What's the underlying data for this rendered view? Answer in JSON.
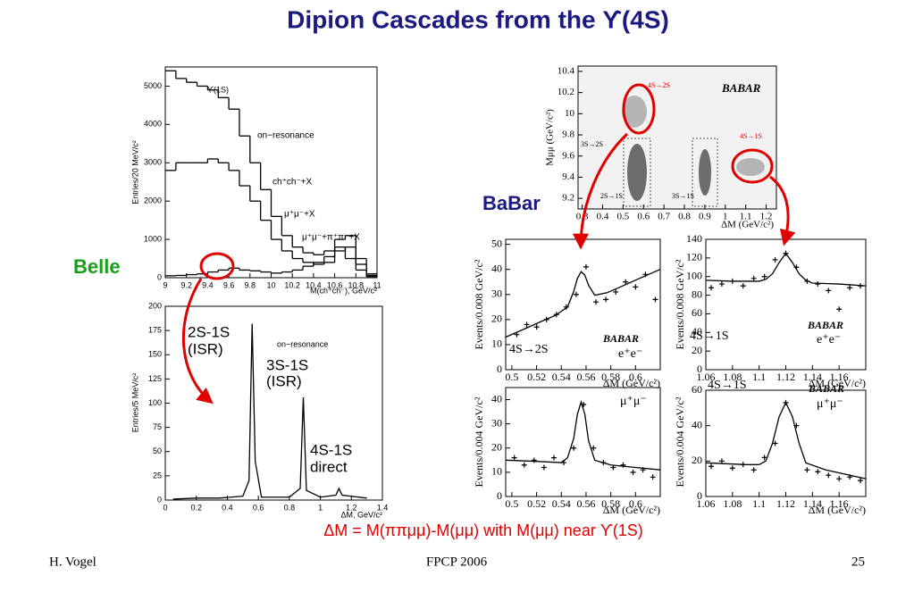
{
  "title": "Dipion Cascades from the ϒ(4S)",
  "labels": {
    "belle": "Belle",
    "babar": "BaBar",
    "formula": "ΔM = M(ππμμ)-M(μμ)  with  M(μμ) near ϒ(1S)"
  },
  "footer": {
    "author": "H. Vogel",
    "conference": "FPCP 2006",
    "page": "25"
  },
  "plots": [
    {
      "xlim": [
        9,
        11
      ],
      "ylim": [
        0,
        5500
      ],
      "xticks": [
        9,
        9.2,
        9.4,
        9.6,
        9.8,
        10,
        10.2,
        10.4,
        10.6,
        10.8,
        11
      ],
      "yticks": [
        0,
        1000,
        2000,
        3000,
        4000,
        5000
      ],
      "xlabel": "M(ch⁺ch⁻), GeV/c²",
      "ylabel": "Entries/20 MeV/c²",
      "annotations": [
        "ϒ(1S)",
        "on−resonance",
        "ch⁺ch⁻+X",
        "μ⁺μ⁻+X",
        "μ⁺μ⁻+π⁺π⁻+X"
      ],
      "series": [
        {
          "style": "step",
          "x": [
            9.0,
            9.1,
            9.2,
            9.3,
            9.4,
            9.5,
            9.6,
            9.7,
            9.8,
            9.9,
            10.0,
            10.1,
            10.2,
            10.3,
            10.4,
            10.5,
            10.6,
            10.7,
            10.8,
            10.9
          ],
          "values": [
            5400,
            5200,
            5100,
            5000,
            4900,
            4700,
            4400,
            3700,
            3000,
            2300,
            1600,
            1100,
            800,
            650,
            600,
            700,
            1000,
            1100,
            500,
            100
          ]
        },
        {
          "style": "step",
          "x": [
            9.0,
            9.1,
            9.2,
            9.3,
            9.4,
            9.5,
            9.6,
            9.7,
            9.8,
            9.9,
            10.0,
            10.1,
            10.2,
            10.3,
            10.4,
            10.5,
            10.6,
            10.7,
            10.8,
            10.9
          ],
          "values": [
            2800,
            3000,
            3000,
            3000,
            3100,
            3000,
            2800,
            2400,
            2000,
            1500,
            1000,
            700,
            500,
            400,
            350,
            400,
            700,
            800,
            350,
            60
          ]
        },
        {
          "style": "step",
          "x": [
            9.0,
            9.1,
            9.2,
            9.3,
            9.4,
            9.5,
            9.6,
            9.7,
            9.8,
            9.9,
            10.0,
            10.1,
            10.2,
            10.3,
            10.4,
            10.5,
            10.6,
            10.7,
            10.8,
            10.9
          ],
          "values": [
            50,
            60,
            80,
            100,
            150,
            200,
            250,
            200,
            180,
            150,
            120,
            150,
            200,
            300,
            400,
            550,
            800,
            500,
            200,
            30
          ]
        }
      ]
    },
    {
      "xlim": [
        0,
        1.4
      ],
      "ylim": [
        0,
        200
      ],
      "xticks": [
        0,
        0.2,
        0.4,
        0.6,
        0.8,
        1,
        1.2,
        1.4
      ],
      "yticks": [
        0,
        25,
        50,
        75,
        100,
        125,
        150,
        175,
        200
      ],
      "xlabel": "ΔM, GeV/c²",
      "ylabel": "Entries/5 MeV/c²",
      "annotations": [
        "on−resonance",
        "2S-1S",
        "(ISR)",
        "3S-1S",
        "(ISR)",
        "4S-1S",
        "direct"
      ],
      "series": [
        {
          "style": "line",
          "x": [
            0.05,
            0.2,
            0.35,
            0.5,
            0.54,
            0.56,
            0.58,
            0.62,
            0.8,
            0.87,
            0.89,
            0.91,
            1.0,
            1.1,
            1.12,
            1.14,
            1.3
          ],
          "values": [
            1,
            2,
            2,
            4,
            20,
            182,
            40,
            3,
            3,
            12,
            106,
            10,
            3,
            5,
            12,
            5,
            2
          ]
        }
      ]
    },
    {
      "xlim": [
        0.28,
        1.25
      ],
      "ylim": [
        9.1,
        10.45
      ],
      "xticks": [
        0.3,
        0.4,
        0.5,
        0.6,
        0.7,
        0.8,
        0.9,
        1,
        1.1,
        1.2
      ],
      "yticks": [
        9.2,
        9.4,
        9.6,
        9.8,
        10,
        10.2,
        10.4
      ],
      "xlabel": "ΔM   (GeV/c²)",
      "ylabel": "Mμμ  (GeV/c²)",
      "annotations": [
        "4S→2S",
        "3S→2S",
        "2S→1S",
        "3S→1S",
        "4S→1S",
        "BABAR"
      ],
      "series": []
    },
    {
      "xlim": [
        0.495,
        0.62
      ],
      "ylim": [
        0,
        52
      ],
      "xticks": [
        0.5,
        0.52,
        0.54,
        0.56,
        0.58,
        0.6
      ],
      "yticks": [
        0,
        10,
        20,
        30,
        40,
        50
      ],
      "xlabel": "ΔM (GeV/c²)",
      "ylabel": "Events/0.008 GeV/c²",
      "annotations": [
        "4S→2S",
        "BABAR",
        "e⁺e⁻"
      ],
      "series": [
        {
          "style": "points",
          "x": [
            0.504,
            0.512,
            0.52,
            0.528,
            0.536,
            0.544,
            0.552,
            0.56,
            0.568,
            0.576,
            0.584,
            0.592,
            0.6,
            0.608,
            0.616
          ],
          "values": [
            14,
            18,
            17,
            20,
            22,
            25,
            30,
            41,
            27,
            28,
            31,
            35,
            33,
            38,
            28
          ]
        },
        {
          "style": "curve",
          "x": [
            0.495,
            0.51,
            0.525,
            0.535,
            0.545,
            0.55,
            0.553,
            0.556,
            0.559,
            0.562,
            0.567,
            0.577,
            0.59,
            0.605,
            0.62
          ],
          "values": [
            13,
            16.2,
            19.5,
            21.6,
            25,
            31.2,
            36.4,
            39.1,
            37.7,
            33.7,
            29.7,
            30.7,
            33.5,
            36.8,
            40
          ]
        }
      ]
    },
    {
      "xlim": [
        1.06,
        1.18
      ],
      "ylim": [
        0,
        140
      ],
      "xticks": [
        1.06,
        1.08,
        1.1,
        1.12,
        1.14,
        1.16
      ],
      "yticks": [
        0,
        20,
        40,
        60,
        80,
        100,
        120,
        140
      ],
      "xlabel": "ΔM (GeV/c²)",
      "ylabel": "Events/0.008 GeV/c²",
      "annotations": [
        "4S→1S",
        "BABAR",
        "e⁺e⁻"
      ],
      "series": [
        {
          "style": "points",
          "x": [
            1.064,
            1.072,
            1.08,
            1.088,
            1.096,
            1.104,
            1.112,
            1.12,
            1.128,
            1.136,
            1.144,
            1.152,
            1.16,
            1.168,
            1.176
          ],
          "values": [
            88,
            92,
            95,
            90,
            98,
            100,
            118,
            125,
            110,
            95,
            92,
            85,
            65,
            88,
            90
          ]
        },
        {
          "style": "curve",
          "x": [
            1.06,
            1.08,
            1.1,
            1.105,
            1.11,
            1.115,
            1.12,
            1.125,
            1.13,
            1.135,
            1.14,
            1.16,
            1.18
          ],
          "values": [
            96,
            95,
            95,
            97,
            103,
            115,
            125,
            115,
            103,
            96,
            93,
            92,
            90
          ]
        }
      ]
    },
    {
      "xlim": [
        0.495,
        0.62
      ],
      "ylim": [
        0,
        45
      ],
      "xticks": [
        0.5,
        0.52,
        0.54,
        0.56,
        0.58,
        0.6
      ],
      "yticks": [
        0,
        10,
        20,
        30,
        40
      ],
      "xlabel": "ΔM (GeV/c²)",
      "ylabel": "Events/0.004 GeV/c²",
      "annotations": [
        "μ⁺μ⁻"
      ],
      "series": [
        {
          "style": "points",
          "x": [
            0.502,
            0.51,
            0.518,
            0.526,
            0.534,
            0.542,
            0.55,
            0.558,
            0.566,
            0.574,
            0.582,
            0.59,
            0.598,
            0.606,
            0.614
          ],
          "values": [
            16,
            13,
            15,
            12,
            16,
            14,
            20,
            38,
            20,
            14,
            12,
            13,
            10,
            11,
            8
          ]
        },
        {
          "style": "curve",
          "x": [
            0.495,
            0.52,
            0.54,
            0.545,
            0.55,
            0.553,
            0.556,
            0.559,
            0.562,
            0.567,
            0.58,
            0.6,
            0.62
          ],
          "values": [
            15,
            14.5,
            14,
            16,
            24,
            34,
            39,
            34,
            23,
            15,
            13,
            12,
            11
          ]
        }
      ]
    },
    {
      "xlim": [
        1.06,
        1.18
      ],
      "ylim": [
        0,
        60
      ],
      "xticks": [
        1.06,
        1.08,
        1.1,
        1.12,
        1.14,
        1.16
      ],
      "yticks": [
        0,
        20,
        40,
        60
      ],
      "xlabel": "ΔM (GeV/c²)",
      "ylabel": "Events/0.004 GeV/c²",
      "annotations": [
        "4S→1S",
        "BABAR",
        "μ⁺μ⁻"
      ],
      "series": [
        {
          "style": "points",
          "x": [
            1.064,
            1.072,
            1.08,
            1.088,
            1.096,
            1.104,
            1.112,
            1.12,
            1.128,
            1.136,
            1.144,
            1.152,
            1.16,
            1.168,
            1.176
          ],
          "values": [
            17,
            20,
            16,
            18,
            15,
            22,
            30,
            53,
            40,
            15,
            14,
            12,
            10,
            11,
            9
          ]
        },
        {
          "style": "curve",
          "x": [
            1.06,
            1.09,
            1.1,
            1.105,
            1.11,
            1.115,
            1.12,
            1.125,
            1.13,
            1.135,
            1.15,
            1.18
          ],
          "values": [
            19,
            18,
            18,
            20,
            30,
            45,
            53,
            45,
            30,
            19,
            15,
            10
          ]
        }
      ]
    }
  ]
}
